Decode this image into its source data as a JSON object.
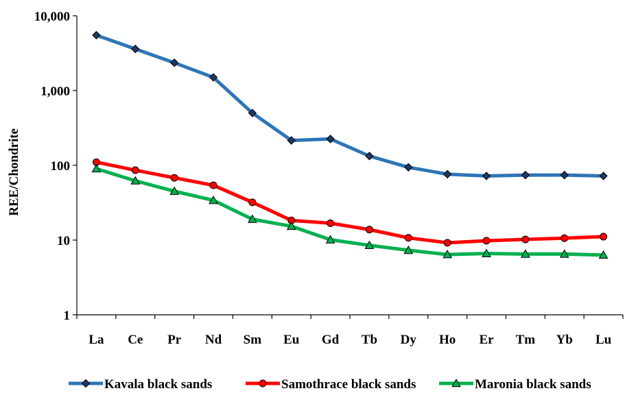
{
  "chart_data": {
    "type": "line",
    "title": "",
    "xlabel": "",
    "ylabel": "REE/Chondrite",
    "yscale": "log",
    "ylim": [
      1,
      10000
    ],
    "yticks": [
      "1",
      "10",
      "100",
      "1,000",
      "10,000"
    ],
    "grid": false,
    "legend_position": "bottom",
    "categories": [
      "La",
      "Ce",
      "Pr",
      "Nd",
      "Sm",
      "Eu",
      "Gd",
      "Tb",
      "Dy",
      "Ho",
      "Er",
      "Tm",
      "Yb",
      "Lu"
    ],
    "series": [
      {
        "name": "Kavala black sands",
        "color": "#2e75b6",
        "marker": "diamond",
        "marker_color": "#1f3864",
        "values": [
          5500,
          3600,
          2350,
          1500,
          500,
          215,
          225,
          133,
          94,
          76,
          72,
          74,
          74,
          72
        ]
      },
      {
        "name": "Samothrace black sands",
        "color": "#ff0000",
        "marker": "circle",
        "marker_color": "#ff0000",
        "values": [
          110,
          86,
          68,
          54,
          32,
          18.3,
          16.8,
          13.8,
          10.7,
          9.2,
          9.8,
          10.2,
          10.6,
          11.1
        ]
      },
      {
        "name": "Maronia black sands",
        "color": "#00b050",
        "marker": "triangle",
        "marker_color": "#00b050",
        "values": [
          90,
          62,
          45,
          34,
          19,
          15.3,
          10.1,
          8.5,
          7.3,
          6.4,
          6.6,
          6.5,
          6.5,
          6.3
        ]
      }
    ]
  }
}
